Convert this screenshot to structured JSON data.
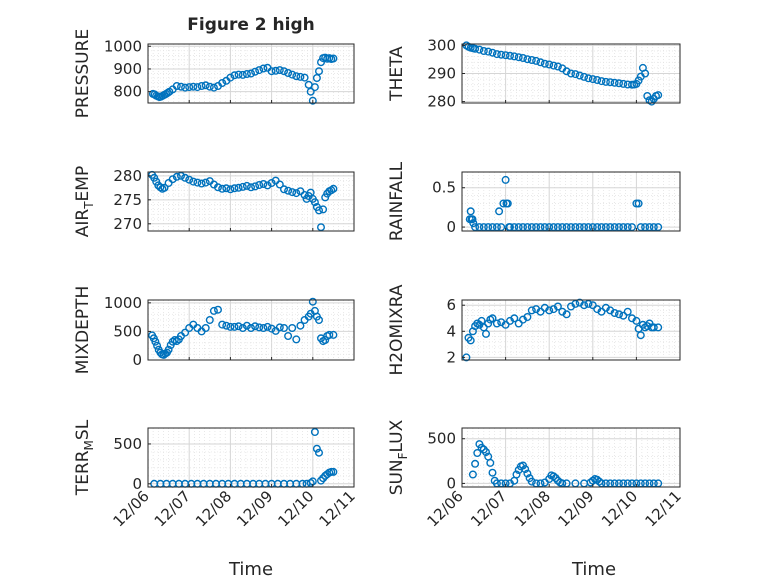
{
  "figure": {
    "title": "Figure 2 high",
    "marker_color": "#0072BD",
    "x_label": "Time",
    "x_ticks": [
      "12/06",
      "12/07",
      "12/08",
      "12/09",
      "12/10",
      "12/11"
    ]
  },
  "chart_data": [
    {
      "type": "scatter",
      "ylabel": "PRESSURE",
      "ylim": [
        750,
        1010
      ],
      "yticks": [
        "800",
        "900",
        "1000"
      ],
      "ytick_values": [
        800,
        900,
        1000
      ],
      "xlim": [
        0,
        5
      ],
      "grid": true,
      "series": [
        {
          "x": [
            0.12,
            0.16,
            0.2,
            0.24,
            0.28,
            0.32,
            0.36,
            0.4,
            0.44,
            0.48,
            0.52,
            0.6,
            0.7,
            0.8,
            0.9,
            1.0,
            1.1,
            1.2,
            1.3,
            1.4,
            1.5,
            1.6,
            1.7,
            1.8,
            1.9,
            2.0,
            2.1,
            2.2,
            2.3,
            2.4,
            2.5,
            2.6,
            2.7,
            2.8,
            2.9,
            3.0,
            3.1,
            3.2,
            3.3,
            3.4,
            3.5,
            3.6,
            3.7,
            3.8,
            3.9,
            3.95,
            4.0,
            4.05,
            4.1,
            4.15,
            4.2,
            4.25,
            4.3,
            4.35,
            4.4,
            4.45,
            4.5
          ],
          "y": [
            790,
            788,
            782,
            779,
            776,
            778,
            782,
            786,
            790,
            795,
            800,
            810,
            825,
            822,
            818,
            820,
            822,
            820,
            825,
            828,
            822,
            818,
            825,
            838,
            848,
            862,
            872,
            875,
            874,
            878,
            880,
            888,
            895,
            902,
            905,
            890,
            892,
            895,
            890,
            882,
            875,
            868,
            865,
            862,
            830,
            800,
            760,
            820,
            860,
            890,
            930,
            948,
            950,
            945,
            948,
            944,
            946
          ]
        }
      ]
    },
    {
      "type": "scatter",
      "ylabel": "THETA",
      "ylim": [
        279.5,
        300.5
      ],
      "yticks": [
        "280",
        "290",
        "300"
      ],
      "ytick_values": [
        280,
        290,
        300
      ],
      "xlim": [
        0,
        5
      ],
      "grid": true,
      "series": [
        {
          "x": [
            0.1,
            0.15,
            0.2,
            0.25,
            0.3,
            0.4,
            0.5,
            0.6,
            0.7,
            0.8,
            0.9,
            1.0,
            1.1,
            1.2,
            1.3,
            1.4,
            1.5,
            1.6,
            1.7,
            1.8,
            1.9,
            2.0,
            2.1,
            2.2,
            2.3,
            2.4,
            2.5,
            2.6,
            2.7,
            2.8,
            2.9,
            3.0,
            3.1,
            3.2,
            3.3,
            3.4,
            3.5,
            3.6,
            3.7,
            3.8,
            3.9,
            3.95,
            4.0,
            4.05,
            4.1,
            4.15,
            4.2,
            4.25,
            4.3,
            4.35,
            4.4,
            4.45,
            4.5
          ],
          "y": [
            300,
            299.5,
            299.2,
            299,
            298.8,
            298.5,
            298,
            297.8,
            297.4,
            296.9,
            296.7,
            296.5,
            296.3,
            296.1,
            295.8,
            295.5,
            295.1,
            294.8,
            294.5,
            294,
            293.5,
            293.2,
            292.8,
            292.5,
            291.8,
            290.8,
            290,
            289.8,
            289.3,
            288.8,
            288.3,
            288,
            287.7,
            287.3,
            287,
            286.9,
            286.7,
            286.5,
            286.3,
            286.1,
            286,
            286.1,
            286.3,
            287.5,
            288.9,
            292,
            290,
            282,
            280.5,
            280,
            281,
            282,
            282.3
          ]
        }
      ]
    },
    {
      "type": "scatter",
      "ylabel": "AIR_TEMP",
      "ylim": [
        268.5,
        280.8
      ],
      "yticks": [
        "270",
        "275",
        "280"
      ],
      "ytick_values": [
        270,
        275,
        280
      ],
      "xlim": [
        0,
        5
      ],
      "grid": true,
      "series": [
        {
          "x": [
            0.1,
            0.15,
            0.2,
            0.25,
            0.3,
            0.35,
            0.4,
            0.5,
            0.6,
            0.7,
            0.8,
            0.9,
            1.0,
            1.1,
            1.2,
            1.3,
            1.4,
            1.5,
            1.6,
            1.7,
            1.8,
            1.9,
            2.0,
            2.1,
            2.2,
            2.3,
            2.4,
            2.5,
            2.6,
            2.7,
            2.8,
            2.9,
            3.0,
            3.1,
            3.2,
            3.3,
            3.4,
            3.5,
            3.6,
            3.7,
            3.8,
            3.85,
            3.9,
            3.95,
            4.0,
            4.05,
            4.1,
            4.15,
            4.2,
            4.25,
            4.3,
            4.35,
            4.4,
            4.45,
            4.5
          ],
          "y": [
            280.2,
            279.6,
            278.8,
            278,
            277.6,
            277.3,
            277.5,
            278.5,
            279.3,
            279.8,
            280,
            279.6,
            279.2,
            278.8,
            278.6,
            278.4,
            278.6,
            278.9,
            278.2,
            277.6,
            277.3,
            277.4,
            277.2,
            277.4,
            277.5,
            277.7,
            277.9,
            277.6,
            277.8,
            278.1,
            278.3,
            278,
            278.5,
            279,
            278.2,
            277.2,
            276.9,
            276.6,
            276.4,
            276.8,
            276,
            275.2,
            275.8,
            276.5,
            275.2,
            274.5,
            273.5,
            272.8,
            269.3,
            273,
            275.5,
            276.3,
            276.8,
            277,
            277.3
          ]
        }
      ]
    },
    {
      "type": "scatter",
      "ylabel": "RAINFALL",
      "ylim": [
        -0.05,
        0.7
      ],
      "yticks": [
        "0",
        "0.5"
      ],
      "ytick_values": [
        0,
        0.5
      ],
      "xlim": [
        0,
        5
      ],
      "grid": true,
      "series": [
        {
          "x": [
            0.18,
            0.2,
            0.22,
            0.24,
            0.26,
            0.3,
            0.4,
            0.5,
            0.6,
            0.7,
            0.8,
            0.85,
            0.9,
            0.95,
            1.0,
            1.02,
            1.05,
            1.08,
            1.1,
            1.2,
            1.3,
            1.4,
            1.5,
            1.6,
            1.7,
            1.8,
            1.9,
            2.0,
            2.1,
            2.2,
            2.3,
            2.4,
            2.5,
            2.6,
            2.7,
            2.8,
            2.9,
            3.0,
            3.1,
            3.2,
            3.3,
            3.4,
            3.5,
            3.6,
            3.7,
            3.8,
            3.9,
            4.0,
            4.05,
            4.1,
            4.2,
            4.3,
            4.4,
            4.5
          ],
          "y": [
            0.1,
            0.2,
            0.1,
            0.1,
            0.05,
            0,
            0,
            0,
            0,
            0,
            0,
            0.2,
            0,
            0.3,
            0.6,
            0.3,
            0.3,
            0,
            0,
            0,
            0,
            0,
            0,
            0,
            0,
            0,
            0,
            0,
            0,
            0,
            0,
            0,
            0,
            0,
            0,
            0,
            0,
            0,
            0,
            0,
            0,
            0,
            0,
            0,
            0,
            0,
            0,
            0.3,
            0.3,
            0,
            0,
            0,
            0,
            0
          ]
        }
      ]
    },
    {
      "type": "scatter",
      "ylabel": "MIXDEPTH",
      "ylim": [
        0,
        1050
      ],
      "yticks": [
        "0",
        "500",
        "1000"
      ],
      "ytick_values": [
        0,
        500,
        1000
      ],
      "xlim": [
        0,
        5
      ],
      "grid": true,
      "series": [
        {
          "x": [
            0.1,
            0.14,
            0.18,
            0.22,
            0.26,
            0.3,
            0.34,
            0.38,
            0.42,
            0.46,
            0.5,
            0.55,
            0.6,
            0.65,
            0.7,
            0.75,
            0.8,
            0.9,
            1.0,
            1.1,
            1.2,
            1.3,
            1.4,
            1.5,
            1.6,
            1.7,
            1.8,
            1.9,
            2.0,
            2.1,
            2.2,
            2.3,
            2.4,
            2.5,
            2.6,
            2.7,
            2.8,
            2.9,
            3.0,
            3.1,
            3.2,
            3.3,
            3.4,
            3.5,
            3.6,
            3.7,
            3.8,
            3.9,
            3.95,
            4.0,
            4.05,
            4.1,
            4.15,
            4.2,
            4.25,
            4.3,
            4.35,
            4.4,
            4.5
          ],
          "y": [
            430,
            380,
            320,
            250,
            180,
            130,
            100,
            90,
            110,
            130,
            180,
            260,
            320,
            350,
            330,
            360,
            420,
            480,
            560,
            620,
            560,
            500,
            560,
            700,
            860,
            880,
            620,
            600,
            580,
            580,
            590,
            560,
            600,
            560,
            590,
            570,
            560,
            580,
            550,
            510,
            570,
            560,
            420,
            560,
            360,
            600,
            700,
            760,
            810,
            1020,
            860,
            760,
            700,
            380,
            330,
            350,
            420,
            440,
            440
          ]
        }
      ]
    },
    {
      "type": "scatter",
      "ylabel": "H2OMIXRA",
      "ylim": [
        1.8,
        6.4
      ],
      "yticks": [
        "2",
        "4",
        "6"
      ],
      "ytick_values": [
        2,
        4,
        6
      ],
      "xlim": [
        0,
        5
      ],
      "grid": true,
      "series": [
        {
          "x": [
            0.1,
            0.15,
            0.2,
            0.25,
            0.3,
            0.35,
            0.4,
            0.45,
            0.5,
            0.55,
            0.6,
            0.65,
            0.7,
            0.8,
            0.9,
            1.0,
            1.1,
            1.2,
            1.3,
            1.4,
            1.5,
            1.6,
            1.7,
            1.8,
            1.9,
            2.0,
            2.1,
            2.2,
            2.3,
            2.4,
            2.5,
            2.6,
            2.7,
            2.8,
            2.9,
            3.0,
            3.1,
            3.2,
            3.3,
            3.4,
            3.5,
            3.6,
            3.7,
            3.8,
            3.9,
            4.0,
            4.05,
            4.1,
            4.15,
            4.2,
            4.25,
            4.3,
            4.35,
            4.4,
            4.5
          ],
          "y": [
            2,
            3.5,
            3.3,
            4.0,
            4.4,
            4.6,
            4.5,
            4.8,
            4.3,
            3.8,
            4.6,
            4.9,
            5.0,
            4.6,
            4.7,
            4.5,
            4.8,
            5.0,
            4.6,
            4.9,
            5.1,
            5.6,
            5.7,
            5.5,
            5.8,
            5.6,
            5.7,
            5.9,
            5.5,
            5.3,
            5.9,
            6.1,
            6.2,
            6.0,
            6.1,
            6.0,
            5.7,
            5.5,
            5.8,
            5.6,
            5.4,
            5.3,
            5.2,
            5.5,
            5.0,
            4.8,
            4.2,
            3.7,
            4.5,
            4.3,
            4.4,
            4.6,
            4.3,
            4.3,
            4.3
          ]
        }
      ]
    },
    {
      "type": "scatter",
      "ylabel": "TERR_MSL",
      "ylim": [
        -40,
        700
      ],
      "yticks": [
        "0",
        "500"
      ],
      "ytick_values": [
        0,
        500
      ],
      "xlim": [
        0,
        5
      ],
      "grid": true,
      "series": [
        {
          "x": [
            0.15,
            0.3,
            0.45,
            0.6,
            0.75,
            0.9,
            1.05,
            1.2,
            1.35,
            1.5,
            1.65,
            1.8,
            1.95,
            2.1,
            2.25,
            2.4,
            2.55,
            2.7,
            2.85,
            3.0,
            3.15,
            3.3,
            3.45,
            3.6,
            3.75,
            3.85,
            3.95,
            4.0,
            4.05,
            4.1,
            4.15,
            4.2,
            4.25,
            4.3,
            4.35,
            4.4,
            4.45,
            4.5
          ],
          "y": [
            0,
            0,
            0,
            0,
            0,
            0,
            0,
            0,
            0,
            0,
            0,
            0,
            0,
            0,
            0,
            0,
            0,
            0,
            0,
            0,
            0,
            0,
            0,
            0,
            0,
            0,
            10,
            30,
            650,
            440,
            390,
            40,
            70,
            100,
            120,
            140,
            150,
            150
          ]
        }
      ]
    },
    {
      "type": "scatter",
      "ylabel": "SUN_FLUX",
      "ylim": [
        -40,
        620
      ],
      "yticks": [
        "0",
        "500"
      ],
      "ytick_values": [
        0,
        500
      ],
      "xlim": [
        0,
        5
      ],
      "grid": true,
      "series": [
        {
          "x": [
            0.25,
            0.3,
            0.35,
            0.4,
            0.45,
            0.5,
            0.55,
            0.6,
            0.65,
            0.7,
            0.75,
            0.8,
            0.9,
            1.0,
            1.1,
            1.2,
            1.25,
            1.3,
            1.35,
            1.4,
            1.45,
            1.5,
            1.55,
            1.6,
            1.7,
            1.8,
            1.9,
            2.0,
            2.05,
            2.1,
            2.15,
            2.2,
            2.25,
            2.3,
            2.4,
            2.6,
            2.8,
            2.95,
            3.0,
            3.05,
            3.1,
            3.15,
            3.2,
            3.3,
            3.4,
            3.5,
            3.6,
            3.7,
            3.8,
            3.9,
            4.0,
            4.1,
            4.2,
            4.3,
            4.4,
            4.5
          ],
          "y": [
            100,
            220,
            340,
            440,
            400,
            380,
            350,
            300,
            230,
            120,
            30,
            0,
            0,
            0,
            0,
            30,
            100,
            150,
            190,
            200,
            160,
            110,
            60,
            20,
            0,
            0,
            10,
            50,
            90,
            80,
            60,
            30,
            10,
            0,
            0,
            0,
            0,
            10,
            30,
            50,
            40,
            20,
            0,
            0,
            0,
            0,
            0,
            0,
            0,
            0,
            0,
            0,
            0,
            0,
            0,
            0
          ]
        }
      ]
    }
  ]
}
